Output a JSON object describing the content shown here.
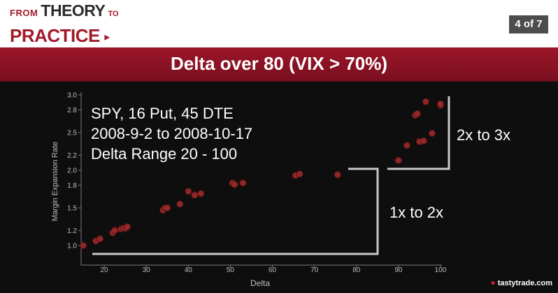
{
  "header": {
    "logo_line1_from": "FROM",
    "logo_line1_theory": "THEORY",
    "logo_line1_to": "TO",
    "logo_line2": "PRACTICE",
    "logo_arrow": "▸",
    "page_indicator": "4 of 7"
  },
  "title": "Delta over 80 (VIX > 70%)",
  "footer": {
    "brand": "tastytrade.com",
    "icon": "cherry-icon"
  },
  "colors": {
    "accent": "#a11b2a",
    "title_band": "#8b1325",
    "point_fill": "#9e2a2a",
    "background": "#0e0e0e",
    "annotation": "#c8c8c8"
  },
  "chart_data": {
    "type": "scatter",
    "xlabel": "Delta",
    "ylabel": "Margin Expansion Rate",
    "xlim": [
      15,
      100
    ],
    "ylim": [
      0.9,
      3.0
    ],
    "xticks": [
      20,
      30,
      40,
      50,
      60,
      70,
      80,
      90,
      100
    ],
    "yticks": [
      1.0,
      1.2,
      1.5,
      1.8,
      2.0,
      2.2,
      2.5,
      2.8,
      3.0
    ],
    "ytick_labels": [
      "1.0",
      "1.2",
      "1.5",
      "1.8",
      "2.0",
      "2.2",
      "2.5",
      "2.8",
      "3.0"
    ],
    "grid": false,
    "annotations": [
      {
        "text": "SPY, 16 Put, 45 DTE"
      },
      {
        "text": "2008-9-2 to 2008-10-17"
      },
      {
        "text": "Delta Range 20 - 100"
      },
      {
        "text": "1x to 2x"
      },
      {
        "text": "2x to 3x"
      }
    ],
    "points": [
      [
        15,
        1.0
      ],
      [
        18,
        1.06
      ],
      [
        19,
        1.09
      ],
      [
        22,
        1.17
      ],
      [
        22.5,
        1.2
      ],
      [
        24,
        1.22
      ],
      [
        24.5,
        1.23
      ],
      [
        25,
        1.23
      ],
      [
        25.5,
        1.25
      ],
      [
        34,
        1.47
      ],
      [
        34.5,
        1.5
      ],
      [
        35,
        1.5
      ],
      [
        38,
        1.55
      ],
      [
        40,
        1.72
      ],
      [
        41.5,
        1.67
      ],
      [
        43,
        1.69
      ],
      [
        50.5,
        1.83
      ],
      [
        51,
        1.81
      ],
      [
        53,
        1.83
      ],
      [
        65.5,
        1.93
      ],
      [
        66.5,
        1.95
      ],
      [
        75.5,
        1.94
      ],
      [
        90,
        2.13
      ],
      [
        92,
        2.33
      ],
      [
        94,
        2.73
      ],
      [
        94.5,
        2.75
      ],
      [
        95,
        2.38
      ],
      [
        96,
        2.39
      ],
      [
        96.5,
        2.91
      ],
      [
        98,
        2.49
      ],
      [
        100,
        2.86
      ],
      [
        100,
        2.88
      ]
    ]
  }
}
